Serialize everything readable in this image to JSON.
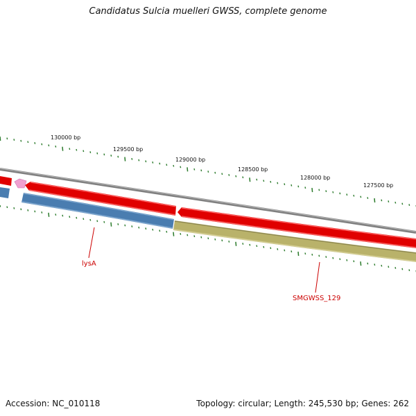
{
  "title": "Candidatus Sulcia muelleri GWSS, complete genome",
  "footer": {
    "accession": "Accession: NC_010118",
    "summary": "Topology: circular; Length: 245,530 bp; Genes: 262"
  },
  "colors": {
    "backbone": "#808080",
    "forward_gene": "#e00000",
    "reverse_gene_blue": "#4a7db0",
    "reverse_gene_olive": "#b9b26a",
    "small_gene": "#f0a0d0",
    "ticks": "#2a7a2a",
    "gene_label": "#cc0000"
  },
  "scale_labels": [
    "130000 bp",
    "129500 bp",
    "129000 bp",
    "128500 bp",
    "128000 bp",
    "127500 bp"
  ],
  "gene_labels": [
    {
      "id": "lysA",
      "text": "lysA"
    },
    {
      "id": "smgwss-129",
      "text": "SMGWSS_129"
    }
  ]
}
